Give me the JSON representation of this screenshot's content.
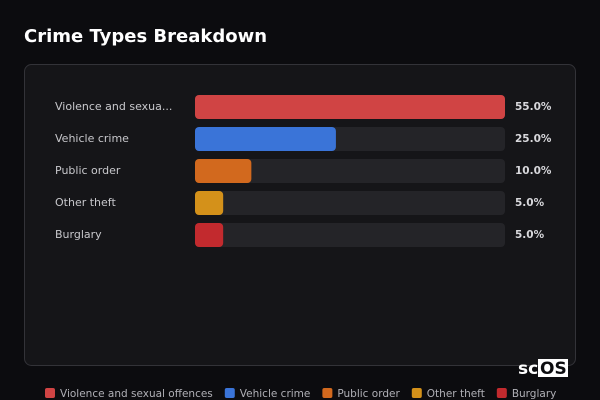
{
  "chart_data": {
    "type": "bar",
    "orientation": "horizontal",
    "title": "Crime Types Breakdown",
    "categories": [
      "Violence and sexua...",
      "Vehicle crime",
      "Public order",
      "Other theft",
      "Burglary"
    ],
    "values": [
      55.0,
      25.0,
      10.0,
      5.0,
      5.0
    ],
    "value_labels": [
      "55.0%",
      "25.0%",
      "10.0%",
      "5.0%",
      "5.0%"
    ],
    "colors": [
      "#d04444",
      "#3a74d8",
      "#d2691e",
      "#d4911a",
      "#c22a2e"
    ],
    "legend": [
      "Violence and sexual offences",
      "Vehicle crime",
      "Public order",
      "Other theft",
      "Burglary"
    ],
    "xlim": [
      0,
      55
    ],
    "watermark": [
      "sc",
      "OS"
    ]
  }
}
